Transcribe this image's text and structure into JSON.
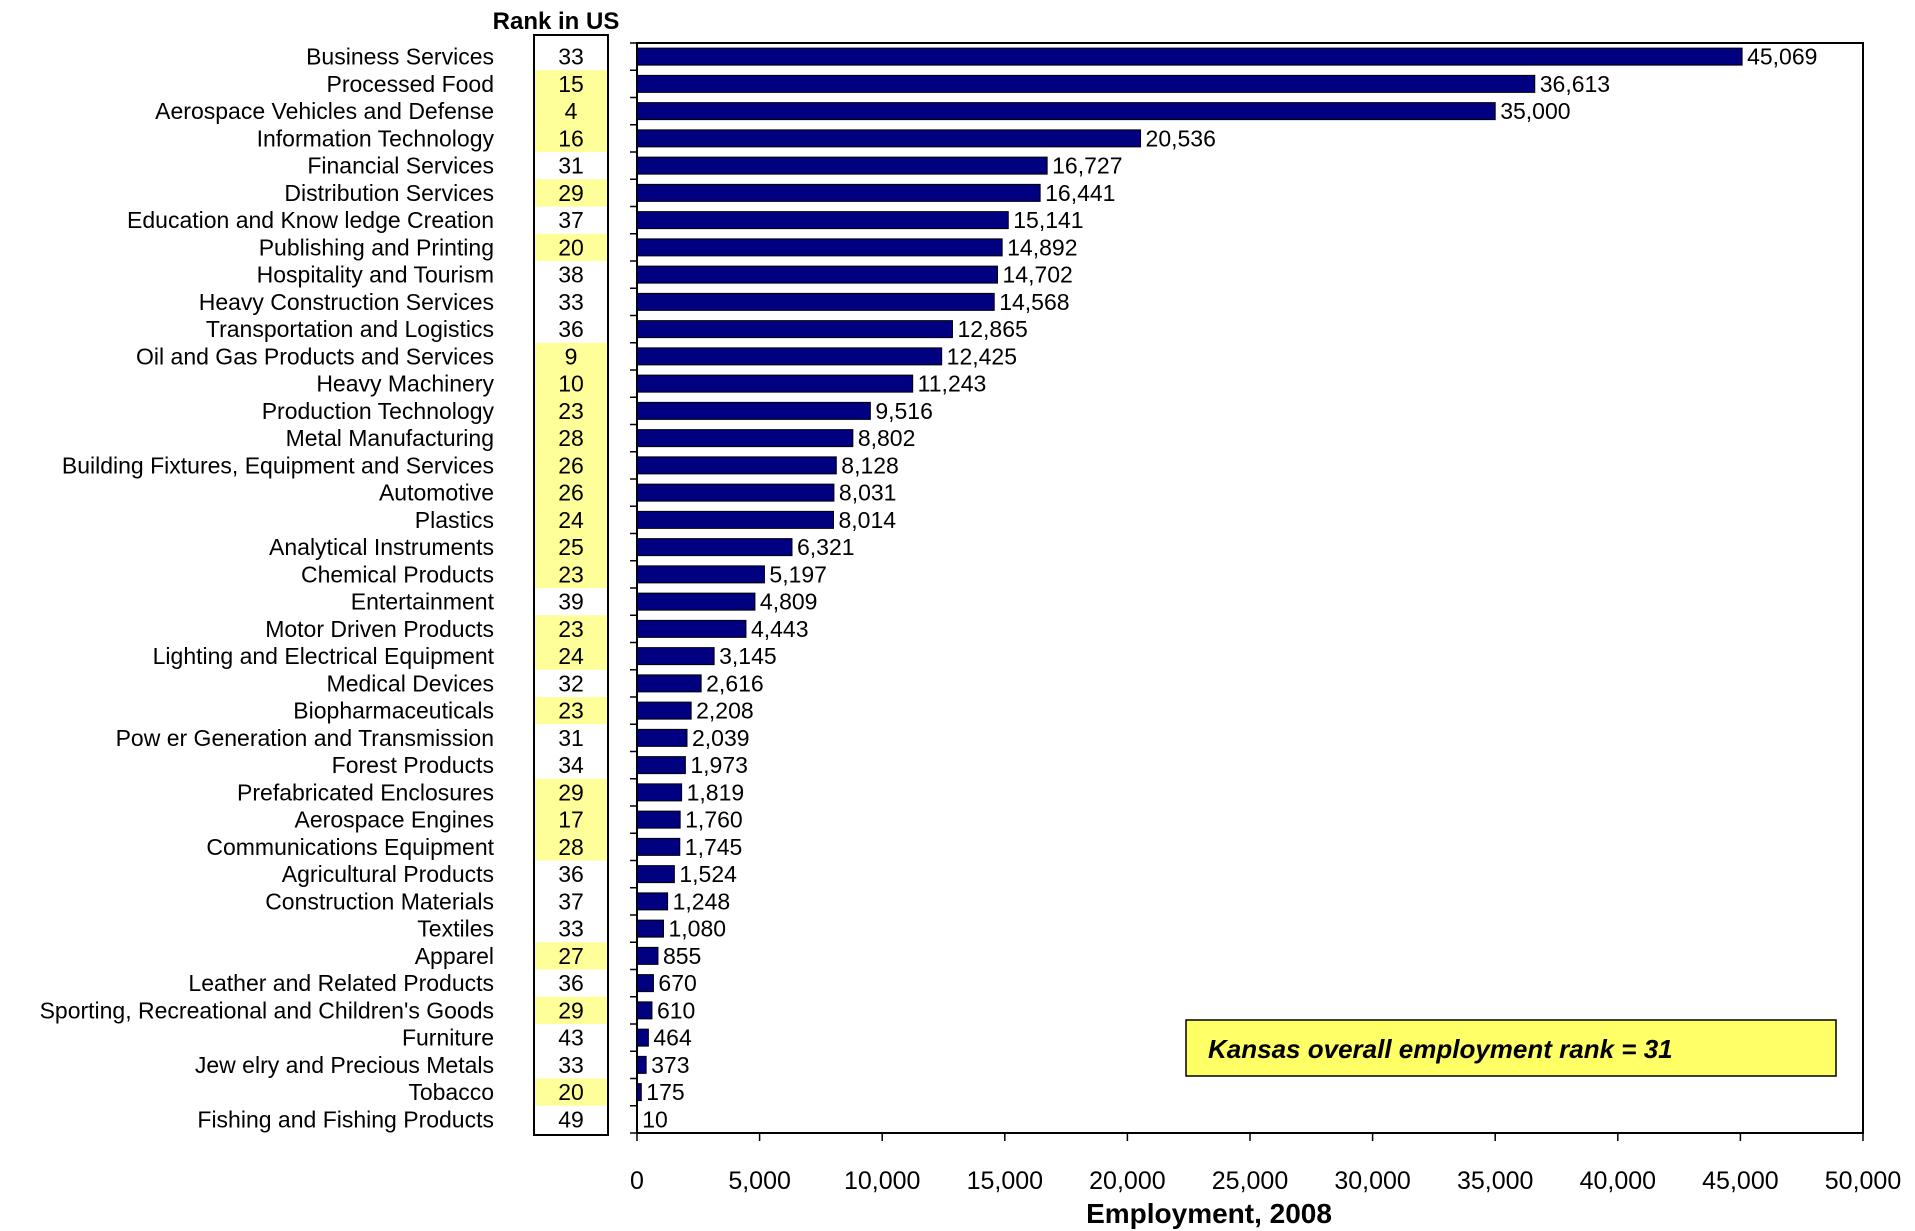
{
  "chart_data": {
    "type": "bar",
    "orientation": "horizontal",
    "xlabel": "Employment, 2008",
    "xlim": [
      0,
      50000
    ],
    "xticks": [
      0,
      5000,
      10000,
      15000,
      20000,
      25000,
      30000,
      35000,
      40000,
      45000,
      50000
    ],
    "xtick_labels": [
      "0",
      "5,000",
      "10,000",
      "15,000",
      "20,000",
      "25,000",
      "30,000",
      "35,000",
      "40,000",
      "45,000",
      "50,000"
    ],
    "grid": false,
    "bar_color": "#000080",
    "rank_header": "Rank in US",
    "rank_highlight_color": "#ffff99",
    "categories": [
      "Business Services",
      "Processed Food",
      "Aerospace Vehicles and Defense",
      "Information Technology",
      "Financial Services",
      "Distribution Services",
      "Education and Know ledge Creation",
      "Publishing and Printing",
      "Hospitality and Tourism",
      "Heavy Construction Services",
      "Transportation and Logistics",
      "Oil and Gas Products and Services",
      "Heavy Machinery",
      "Production Technology",
      "Metal Manufacturing",
      "Building Fixtures, Equipment and Services",
      "Automotive",
      "Plastics",
      "Analytical Instruments",
      "Chemical Products",
      "Entertainment",
      "Motor Driven Products",
      "Lighting and Electrical Equipment",
      "Medical Devices",
      "Biopharmaceuticals",
      "Pow er Generation and Transmission",
      "Forest Products",
      "Prefabricated Enclosures",
      "Aerospace Engines",
      "Communications Equipment",
      "Agricultural Products",
      "Construction Materials",
      "Textiles",
      "Apparel",
      "Leather and Related Products",
      "Sporting, Recreational and Children's Goods",
      "Furniture",
      "Jew elry and Precious Metals",
      "Tobacco",
      "Fishing and Fishing Products"
    ],
    "values": [
      45069,
      36613,
      35000,
      20536,
      16727,
      16441,
      15141,
      14892,
      14702,
      14568,
      12865,
      12425,
      11243,
      9516,
      8802,
      8128,
      8031,
      8014,
      6321,
      5197,
      4809,
      4443,
      3145,
      2616,
      2208,
      2039,
      1973,
      1819,
      1760,
      1745,
      1524,
      1248,
      1080,
      855,
      670,
      610,
      464,
      373,
      175,
      10
    ],
    "value_labels": [
      "45,069",
      "36,613",
      "35,000",
      "20,536",
      "16,727",
      "16,441",
      "15,141",
      "14,892",
      "14,702",
      "14,568",
      "12,865",
      "12,425",
      "11,243",
      "9,516",
      "8,802",
      "8,128",
      "8,031",
      "8,014",
      "6,321",
      "5,197",
      "4,809",
      "4,443",
      "3,145",
      "2,616",
      "2,208",
      "2,039",
      "1,973",
      "1,819",
      "1,760",
      "1,745",
      "1,524",
      "1,248",
      "1,080",
      "855",
      "670",
      "610",
      "464",
      "373",
      "175",
      "10"
    ],
    "ranks": [
      "33",
      "15",
      "4",
      "16",
      "31",
      "29",
      "37",
      "20",
      "38",
      "33",
      "36",
      "9",
      "10",
      "23",
      "28",
      "26",
      "26",
      "24",
      "25",
      "23",
      "39",
      "23",
      "24",
      "32",
      "23",
      "31",
      "34",
      "29",
      "17",
      "28",
      "36",
      "37",
      "33",
      "27",
      "36",
      "29",
      "43",
      "33",
      "20",
      "49"
    ],
    "rank_highlighted": [
      false,
      true,
      true,
      true,
      false,
      true,
      false,
      true,
      false,
      false,
      false,
      true,
      true,
      true,
      true,
      true,
      true,
      true,
      true,
      true,
      false,
      true,
      true,
      false,
      true,
      false,
      false,
      true,
      true,
      true,
      false,
      false,
      false,
      true,
      false,
      true,
      false,
      false,
      true,
      false
    ],
    "annotation": "Kansas overall employment rank = 31",
    "annotation_color": "#ffff66"
  }
}
